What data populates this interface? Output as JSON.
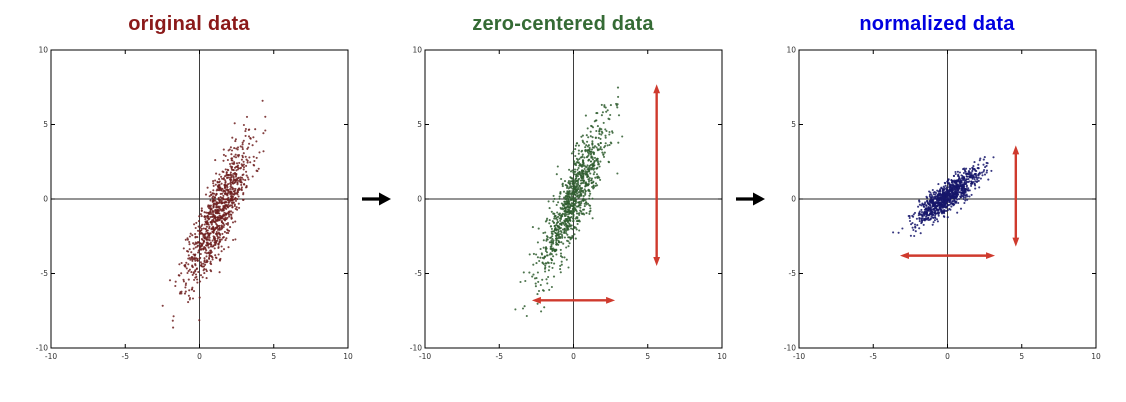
{
  "figure": {
    "background": "#ffffff",
    "flow_arrow_icon": "right-arrow",
    "flow_arrow_color": "#000000",
    "annotation_arrow_color": "#cf3a2d"
  },
  "chart_data": [
    {
      "type": "scatter",
      "title": "original data",
      "title_color": "#8b1a1a",
      "point_color": "#6e2020",
      "xlim": [
        -10,
        10
      ],
      "ylim": [
        -10,
        10
      ],
      "xticks": [
        -10,
        -5,
        0,
        5,
        10
      ],
      "yticks": [
        -10,
        -5,
        0,
        5,
        10
      ],
      "grid": false,
      "axis_lines_at_zero": true,
      "legend": null,
      "cloud": {
        "n": 1000,
        "center": [
          1.3,
          -0.9
        ],
        "spread_major": 2.7,
        "spread_minor": 0.55,
        "angle_deg": 68,
        "seed": 11
      },
      "annotations": []
    },
    {
      "type": "scatter",
      "title": "zero-centered data",
      "title_color": "#356b35",
      "point_color": "#2f5d2f",
      "xlim": [
        -10,
        10
      ],
      "ylim": [
        -10,
        10
      ],
      "xticks": [
        -10,
        -5,
        0,
        5,
        10
      ],
      "yticks": [
        -10,
        -5,
        0,
        5,
        10
      ],
      "grid": false,
      "axis_lines_at_zero": true,
      "legend": null,
      "cloud": {
        "n": 1000,
        "center": [
          0,
          0
        ],
        "spread_major": 2.7,
        "spread_minor": 0.55,
        "angle_deg": 68,
        "seed": 12
      },
      "annotations": [
        {
          "kind": "double-arrow",
          "orientation": "vertical",
          "at": 5.6,
          "from": -4.5,
          "to": 7.7,
          "color": "#cf3a2d"
        },
        {
          "kind": "double-arrow",
          "orientation": "horizontal",
          "at": -6.8,
          "from": -2.8,
          "to": 2.8,
          "color": "#cf3a2d"
        }
      ]
    },
    {
      "type": "scatter",
      "title": "normalized data",
      "title_color": "#0000e0",
      "point_color": "#16166b",
      "xlim": [
        -10,
        10
      ],
      "ylim": [
        -10,
        10
      ],
      "xticks": [
        -10,
        -5,
        0,
        5,
        10
      ],
      "yticks": [
        -10,
        -5,
        0,
        5,
        10
      ],
      "grid": false,
      "axis_lines_at_zero": true,
      "legend": null,
      "cloud": {
        "n": 1000,
        "center": [
          0,
          0.2
        ],
        "spread_major": 1.3,
        "spread_minor": 0.4,
        "angle_deg": 40,
        "seed": 13
      },
      "annotations": [
        {
          "kind": "double-arrow",
          "orientation": "vertical",
          "at": 4.6,
          "from": -3.2,
          "to": 3.6,
          "color": "#cf3a2d"
        },
        {
          "kind": "double-arrow",
          "orientation": "horizontal",
          "at": -3.8,
          "from": -3.2,
          "to": 3.2,
          "color": "#cf3a2d"
        }
      ]
    }
  ]
}
